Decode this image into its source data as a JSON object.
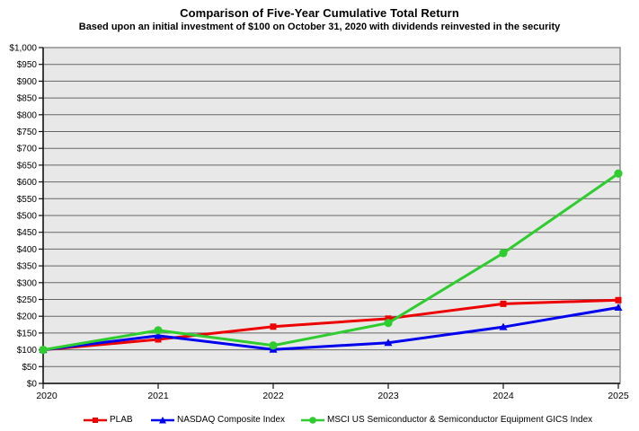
{
  "chart_data": {
    "type": "line",
    "title": "Comparison of Five-Year Cumulative Total Return",
    "subtitle": "Based upon an initial investment of $100 on October 31, 2020 with dividends reinvested in the security",
    "x": [
      "2020",
      "2021",
      "2022",
      "2023",
      "2024",
      "2025"
    ],
    "series": [
      {
        "name": "PLAB",
        "color": "#ee0000",
        "marker": "square",
        "values": [
          100,
          131,
          169,
          193,
          237,
          248
        ]
      },
      {
        "name": "NASDAQ Composite Index",
        "color": "#0000ee",
        "marker": "triangle",
        "values": [
          100,
          142,
          101,
          121,
          168,
          226
        ]
      },
      {
        "name": "MSCI US Semiconductor & Semiconductor Equipment GICS Index",
        "color": "#2ecc2e",
        "marker": "circle",
        "values": [
          100,
          158,
          113,
          180,
          388,
          625
        ]
      }
    ],
    "y_axis": {
      "min": 0,
      "max": 1000,
      "step": 50,
      "tick_prefix": "$",
      "max_label": "$1,000"
    },
    "grid": true,
    "legend_position": "bottom",
    "colors": {
      "plot_background": "#e8e8e8",
      "grid_line": "#666666",
      "plot_border": "#888888",
      "axis_line": "#111111",
      "text": "#000000"
    }
  }
}
